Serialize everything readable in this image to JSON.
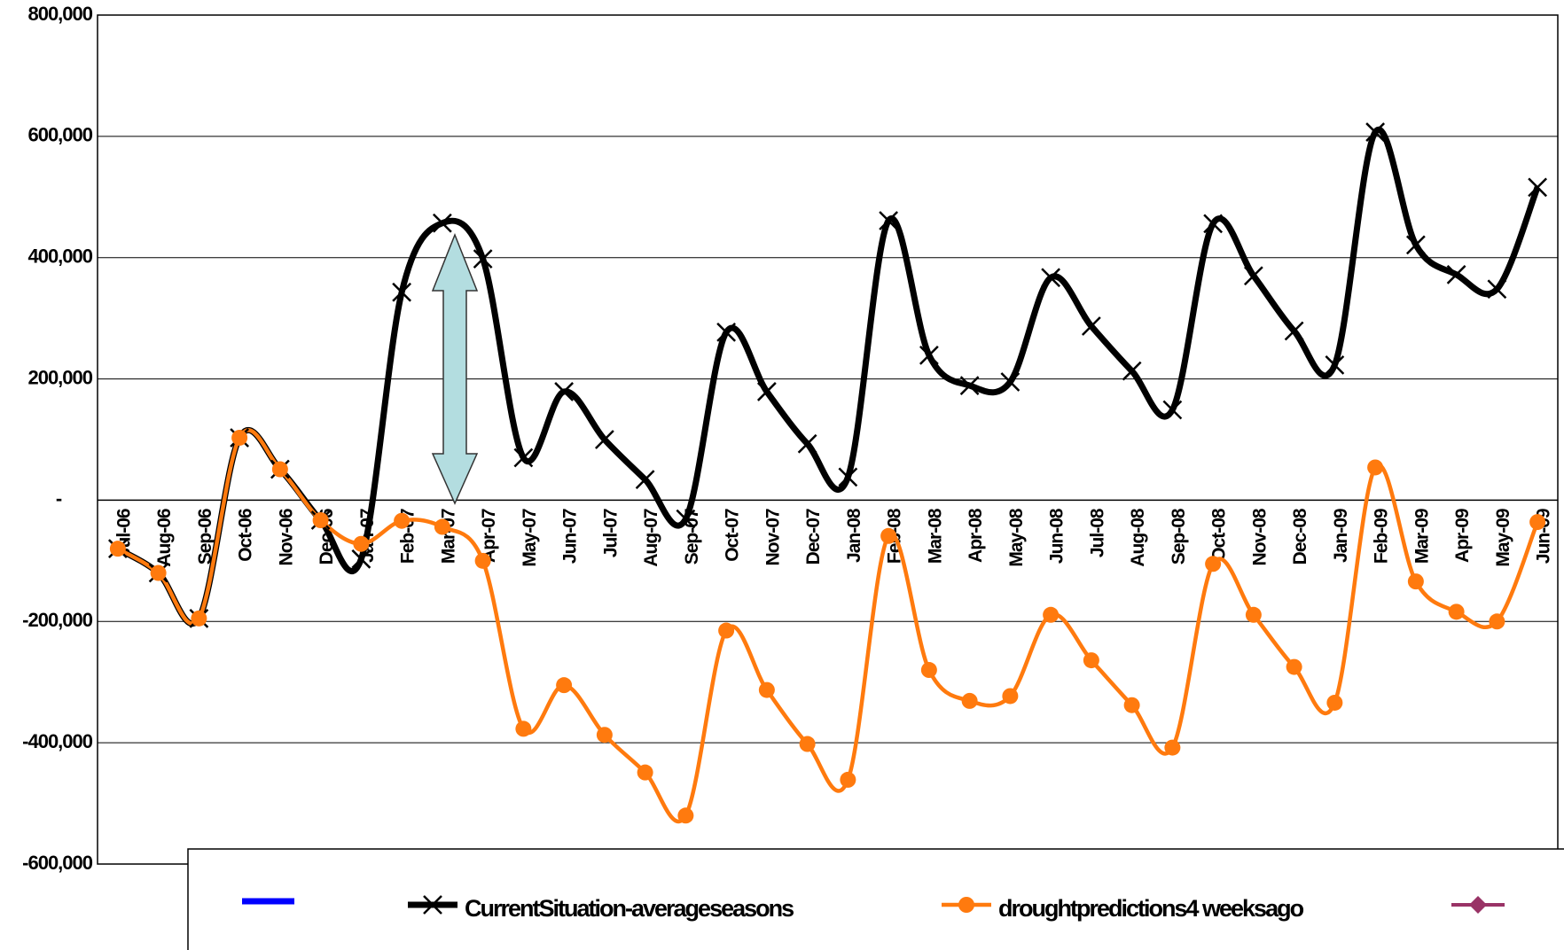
{
  "chart_data": {
    "type": "line",
    "categories": [
      "Jul-06",
      "Aug-06",
      "Sep-06",
      "Oct-06",
      "Nov-06",
      "Dec-06",
      "Jan-07",
      "Feb-07",
      "Mar-07",
      "Apr-07",
      "May-07",
      "Jun-07",
      "Jul-07",
      "Aug-07",
      "Sep-07",
      "Oct-07",
      "Nov-07",
      "Dec-07",
      "Jan-08",
      "Feb-08",
      "Mar-08",
      "Apr-08",
      "May-08",
      "Jun-08",
      "Jul-08",
      "Aug-08",
      "Sep-08",
      "Oct-08",
      "Nov-08",
      "Dec-08",
      "Jan-09",
      "Feb-09",
      "Mar-09",
      "Apr-09",
      "May-09",
      "Jun-09"
    ],
    "series": [
      {
        "name": "CurrentSituation-averageseasons",
        "color": "#000000",
        "marker": "x",
        "values": [
          -80000,
          -120000,
          -195000,
          103000,
          51000,
          -33000,
          -97000,
          343000,
          457000,
          398000,
          70000,
          179000,
          100000,
          34000,
          -31000,
          277000,
          179000,
          93000,
          38000,
          461000,
          239000,
          189000,
          195000,
          367000,
          287000,
          213000,
          149000,
          456000,
          370000,
          279000,
          223000,
          607000,
          421000,
          372000,
          348000,
          516000
        ]
      },
      {
        "name": "droughtpredictions4 weeksago",
        "color": "#ff7a0e",
        "marker": "circle",
        "values": [
          -80000,
          -120000,
          -195000,
          103000,
          51000,
          -33000,
          -72000,
          -34000,
          -44000,
          -100000,
          -377000,
          -305000,
          -387000,
          -449000,
          -520000,
          -215000,
          -313000,
          -402000,
          -461000,
          -59000,
          -280000,
          -331000,
          -323000,
          -189000,
          -264000,
          -338000,
          -408000,
          -105000,
          -189000,
          -275000,
          -334000,
          54000,
          -134000,
          -184000,
          -200000,
          -36000
        ]
      }
    ],
    "ylim": [
      -600000,
      800000
    ],
    "yticks": [
      {
        "value": -600000,
        "label": "-600,000"
      },
      {
        "value": -400000,
        "label": "-400,000"
      },
      {
        "value": -200000,
        "label": "-200,000"
      },
      {
        "value": 0,
        "label": "-"
      },
      {
        "value": 200000,
        "label": "200,000"
      },
      {
        "value": 400000,
        "label": "400,000"
      },
      {
        "value": 600000,
        "label": "600,000"
      },
      {
        "value": 800000,
        "label": "800,000"
      }
    ],
    "grid": true
  }
}
